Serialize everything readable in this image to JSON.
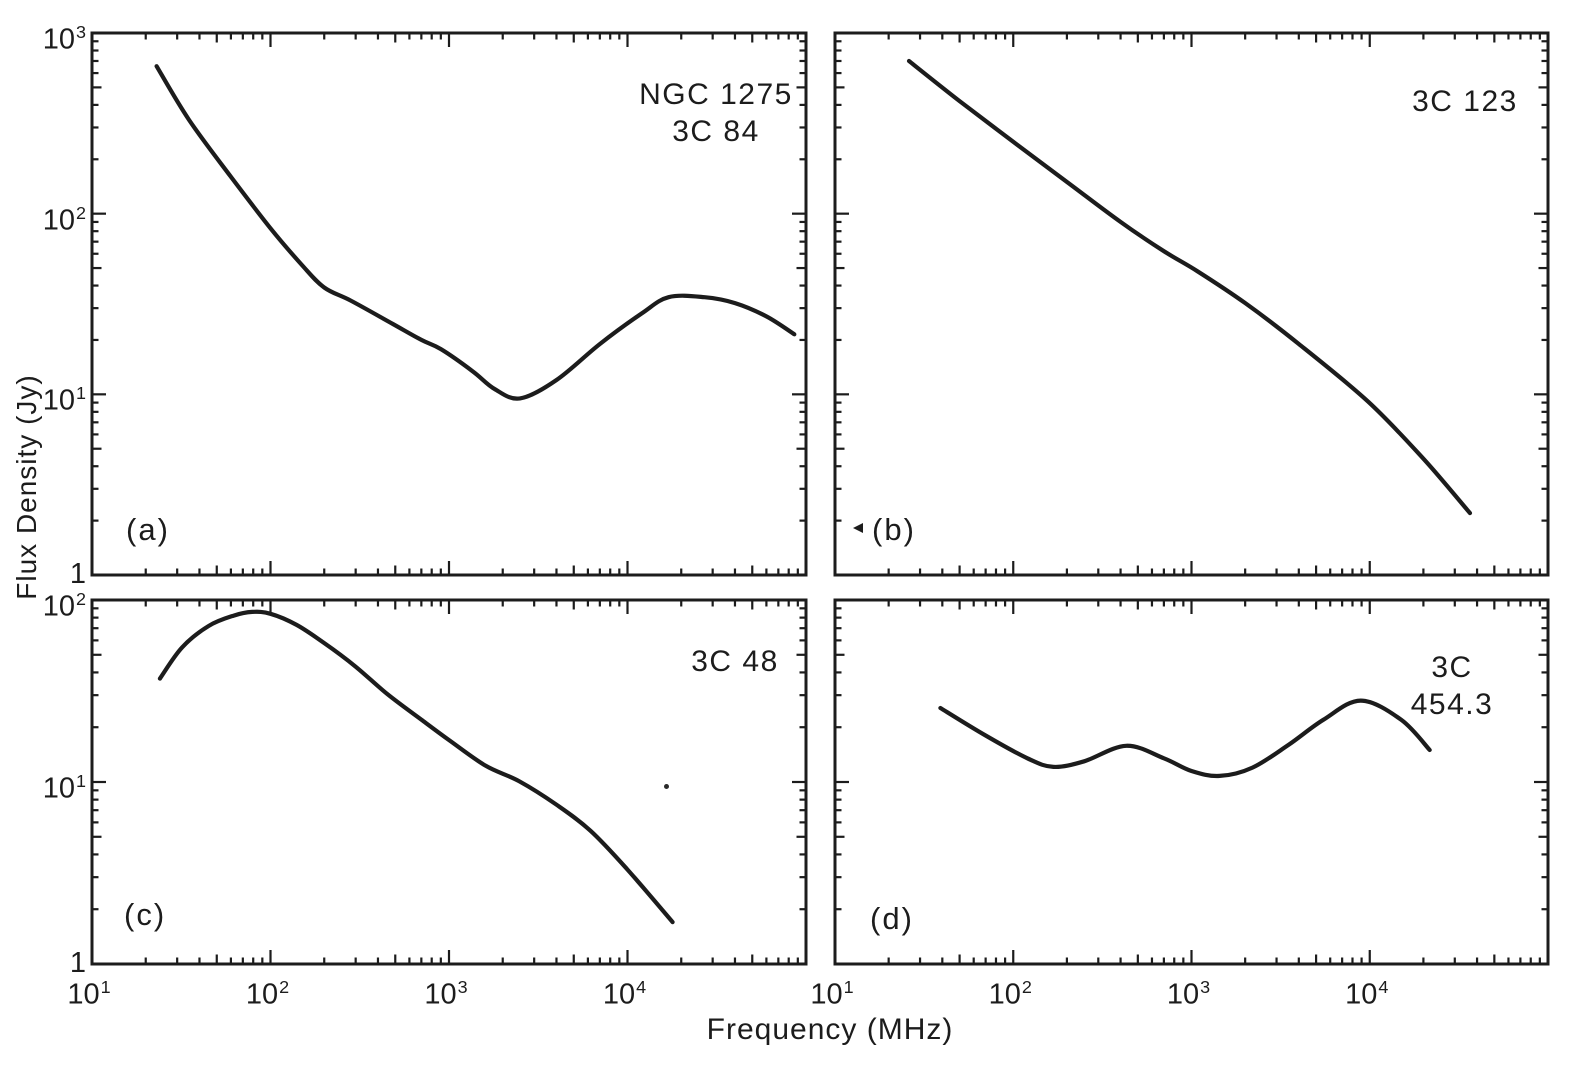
{
  "figure": {
    "xlabel": "Frequency (MHz)",
    "ylabel": "Flux Density (Jy)",
    "ink_color": "#1c1c1c",
    "background": "#ffffff",
    "legend": "none",
    "grid": "off"
  },
  "chart_data": [
    {
      "type": "line",
      "panel_letter": "(a)",
      "source_label": "NGC 1275\n3C 84",
      "title": "NGC 1275 / 3C 84",
      "xlabel": "Frequency (MHz)",
      "ylabel": "Flux Density (Jy)",
      "x_scale": "log",
      "y_scale": "log",
      "xlim": [
        10,
        100000
      ],
      "ylim": [
        1,
        1000
      ],
      "y_ticks": [
        1000,
        100,
        10,
        1
      ],
      "y_tick_labels": [
        "10^3",
        "10^2",
        "10^1",
        "1"
      ],
      "x_ticks": [],
      "x_tick_labels": [],
      "series": [
        {
          "name": "NGC 1275 (3C 84) spectrum",
          "x": [
            23,
            35,
            60,
            100,
            150,
            200,
            282,
            485,
            700,
            900,
            1360,
            1800,
            2500,
            4000,
            7000,
            12000,
            17000,
            27000,
            40000,
            60000,
            86000
          ],
          "y": [
            655,
            330,
            160,
            83,
            52,
            39,
            33,
            24.5,
            20,
            17.8,
            13.4,
            10.7,
            9.5,
            12,
            19,
            28,
            34.5,
            34.5,
            32,
            27,
            21.5
          ]
        }
      ]
    },
    {
      "type": "line",
      "panel_letter": "(b)",
      "source_label": "3C 123",
      "title": "3C 123",
      "xlabel": "Frequency (MHz)",
      "ylabel": "Flux Density (Jy)",
      "x_scale": "log",
      "y_scale": "log",
      "xlim": [
        10,
        100000
      ],
      "ylim": [
        1,
        1000
      ],
      "y_ticks": [],
      "y_tick_labels": [],
      "x_ticks": [],
      "x_tick_labels": [],
      "series": [
        {
          "name": "3C 123 spectrum",
          "x": [
            26,
            50,
            100,
            200,
            400,
            700,
            1080,
            2000,
            4000,
            9800,
            20000,
            36500
          ],
          "y": [
            700,
            420,
            250,
            150,
            90,
            62,
            48,
            32,
            19,
            9.1,
            4.4,
            2.2
          ]
        }
      ]
    },
    {
      "type": "line",
      "panel_letter": "(c)",
      "source_label": "3C 48",
      "title": "3C 48",
      "xlabel": "Frequency (MHz)",
      "ylabel": "Flux Density (Jy)",
      "x_scale": "log",
      "y_scale": "log",
      "xlim": [
        10,
        100000
      ],
      "ylim": [
        1,
        100
      ],
      "y_ticks": [
        100,
        10,
        1
      ],
      "y_tick_labels": [
        "10^2",
        "10^1",
        "1"
      ],
      "x_ticks": [
        10,
        100,
        1000,
        10000
      ],
      "x_tick_labels": [
        "10^1",
        "10^2",
        "10^3",
        "10^4"
      ],
      "series": [
        {
          "name": "3C 48 spectrum",
          "x": [
            24,
            32,
            45,
            62,
            79,
            100,
            140,
            200,
            300,
            450,
            700,
            1000,
            1600,
            2470,
            4000,
            6200,
            10000,
            17900
          ],
          "y": [
            37,
            55,
            72,
            82,
            86,
            84,
            73,
            58,
            43,
            30.5,
            22,
            17,
            12.3,
            10.1,
            7.5,
            5.4,
            3.3,
            1.7
          ]
        }
      ]
    },
    {
      "type": "line",
      "panel_letter": "(d)",
      "source_label": "3C 454.3",
      "title": "3C 454.3",
      "xlabel": "Frequency (MHz)",
      "ylabel": "Flux Density (Jy)",
      "x_scale": "log",
      "y_scale": "log",
      "xlim": [
        10,
        100000
      ],
      "ylim": [
        1,
        100
      ],
      "y_ticks": [],
      "y_tick_labels": [],
      "x_ticks": [
        10,
        100,
        1000,
        10000
      ],
      "x_tick_labels": [
        "10^1",
        "10^2",
        "10^3",
        "10^4"
      ],
      "series": [
        {
          "name": "3C 454.3 spectrum",
          "x": [
            39,
            70,
            120,
            168,
            250,
            430,
            700,
            1000,
            1440,
            2200,
            3500,
            5500,
            8900,
            15000,
            21700
          ],
          "y": [
            25.5,
            18,
            13.5,
            12.1,
            13,
            15.8,
            13.5,
            11.5,
            10.8,
            12,
            16,
            22,
            28,
            22,
            15
          ]
        }
      ]
    }
  ]
}
